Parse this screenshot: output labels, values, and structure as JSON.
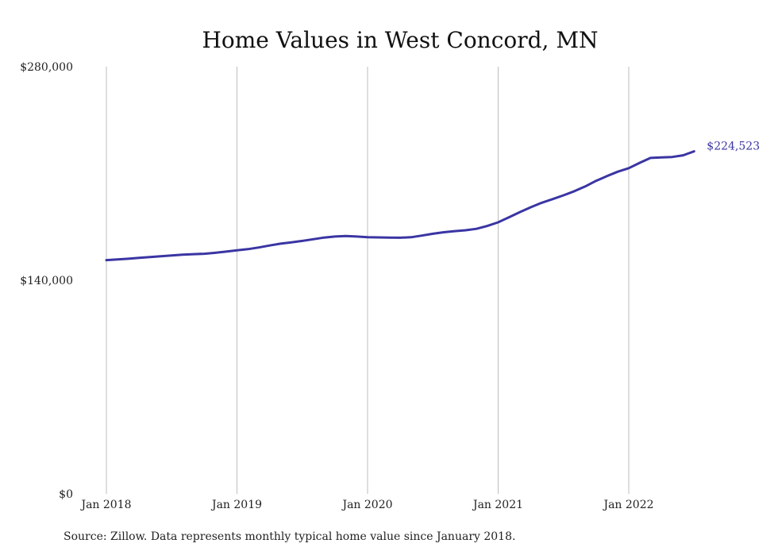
{
  "chart_data": {
    "type": "line",
    "title": "Home Values in West Concord, MN",
    "xlabel": "",
    "ylabel": "",
    "ylim": [
      0,
      280000
    ],
    "y_ticks": [
      {
        "value": 0,
        "label": "$0"
      },
      {
        "value": 140000,
        "label": "$140,000"
      },
      {
        "value": 280000,
        "label": "$280,000"
      }
    ],
    "x_ticks": [
      "Jan 2018",
      "Jan 2019",
      "Jan 2020",
      "Jan 2021",
      "Jan 2022"
    ],
    "grid": "vertical",
    "line_color": "#3a35a3",
    "series": [
      {
        "x": [
          "2018-01",
          "2018-02",
          "2018-03",
          "2018-04",
          "2018-05",
          "2018-06",
          "2018-07",
          "2018-08",
          "2018-09",
          "2018-10",
          "2018-11",
          "2018-12",
          "2019-01",
          "2019-02",
          "2019-03",
          "2019-04",
          "2019-05",
          "2019-06",
          "2019-07",
          "2019-08",
          "2019-09",
          "2019-10",
          "2019-11",
          "2019-12",
          "2020-01",
          "2020-02",
          "2020-03",
          "2020-04",
          "2020-05",
          "2020-06",
          "2020-07",
          "2020-08",
          "2020-09",
          "2020-10",
          "2020-11",
          "2020-12",
          "2021-01",
          "2021-02",
          "2021-03",
          "2021-04",
          "2021-05",
          "2021-06",
          "2021-07",
          "2021-08",
          "2021-09",
          "2021-10",
          "2021-11",
          "2021-12",
          "2022-01",
          "2022-02",
          "2022-03",
          "2022-04",
          "2022-05",
          "2022-06",
          "2022-07"
        ],
        "values": [
          153200,
          153700,
          154100,
          154700,
          155200,
          155700,
          156300,
          156800,
          157100,
          157400,
          158000,
          158800,
          159600,
          160400,
          161500,
          162800,
          164000,
          164900,
          165800,
          166900,
          168000,
          168700,
          169000,
          168700,
          168200,
          168100,
          168000,
          167900,
          168200,
          169300,
          170500,
          171500,
          172200,
          172800,
          173700,
          175600,
          178000,
          181300,
          184700,
          187900,
          190800,
          193200,
          195700,
          198400,
          201500,
          205200,
          208300,
          211200,
          213500,
          217000,
          220200,
          220500,
          220800,
          221900,
          224523
        ]
      }
    ],
    "end_label": "$224,523"
  },
  "source_note": "Source: Zillow. Data represents monthly typical home value since January 2018."
}
